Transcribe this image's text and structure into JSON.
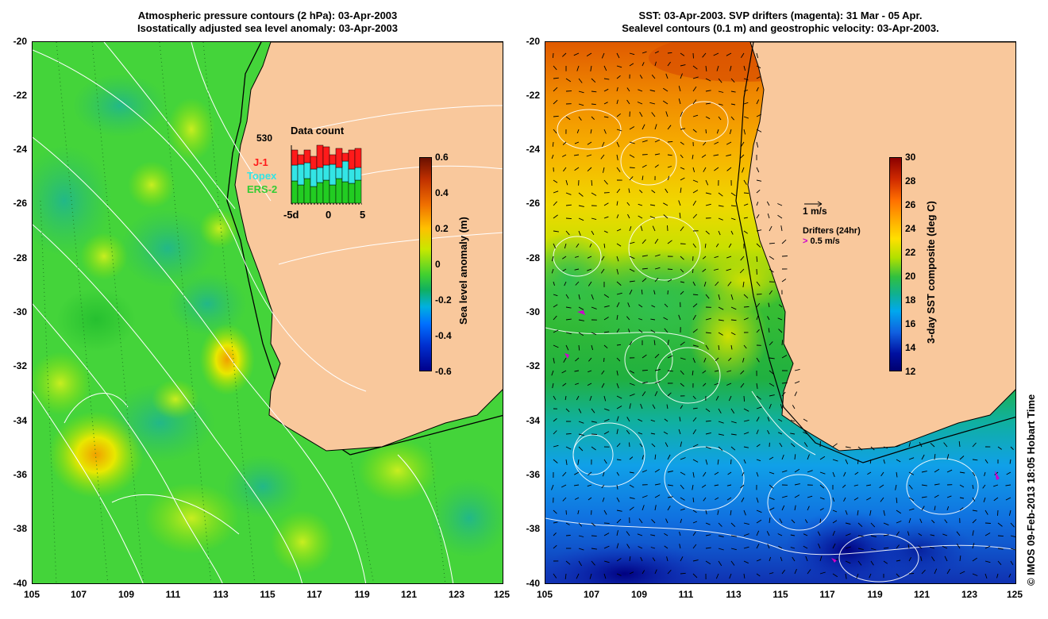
{
  "left_panel": {
    "title_line1": "Atmospheric pressure contours (2 hPa): 03-Apr-2003",
    "title_line2": "Isostatically adjusted sea level anomaly: 03-Apr-2003",
    "lat_ticks": [
      "-20",
      "-22",
      "-24",
      "-26",
      "-28",
      "-30",
      "-32",
      "-34",
      "-36",
      "-38",
      "-40"
    ],
    "lon_ticks": [
      "105",
      "107",
      "109",
      "111",
      "113",
      "115",
      "117",
      "119",
      "121",
      "123",
      "125"
    ],
    "colorbar": {
      "label": "Sea level anomaly (m)",
      "ticks": [
        "0.6",
        "0.4",
        "0.2",
        "0",
        "-0.2",
        "-0.4",
        "-0.6"
      ],
      "colors": [
        "#7a1a00",
        "#e65c00",
        "#ffc000",
        "#a8e600",
        "#22cc22",
        "#00a0ff",
        "#0000aa"
      ]
    },
    "inset": {
      "title": "Data count",
      "max_label": "530",
      "legend": [
        {
          "name": "J-1",
          "color": "#ff1a1a"
        },
        {
          "name": "Topex",
          "color": "#33e5e5"
        },
        {
          "name": "ERS-2",
          "color": "#33cc33"
        }
      ],
      "x_ticks": [
        "-5d",
        "0",
        "5"
      ]
    },
    "land_color": "#f9c89c",
    "ocean_color": "#44d43a"
  },
  "right_panel": {
    "title_line1": "SST: 03-Apr-2003. SVP drifters (magenta): 31 Mar - 05 Apr.",
    "title_line2": "Sealevel contours (0.1 m) and geostrophic velocity: 03-Apr-2003.",
    "lat_ticks": [
      "-20",
      "-22",
      "-24",
      "-26",
      "-28",
      "-30",
      "-32",
      "-34",
      "-36",
      "-38",
      "-40"
    ],
    "lon_ticks": [
      "105",
      "107",
      "109",
      "111",
      "113",
      "115",
      "117",
      "119",
      "121",
      "123",
      "125"
    ],
    "colorbar": {
      "label": "3-day SST composite (deg C)",
      "ticks": [
        "30",
        "28",
        "26",
        "24",
        "22",
        "20",
        "18",
        "16",
        "14",
        "12"
      ],
      "colors": [
        "#8b0000",
        "#e04000",
        "#ff9900",
        "#ffdd00",
        "#aadd00",
        "#33bb33",
        "#00aaee",
        "#1050dd",
        "#000080"
      ]
    },
    "vector_scale_label": "1 m/s",
    "drifters_label": "Drifters (24hr)",
    "drifters_scale_label": "0.5 m/s",
    "land_color": "#f9c89c"
  },
  "credit": "© IMOS 09-Feb-2013 18:05 Hobart Time"
}
